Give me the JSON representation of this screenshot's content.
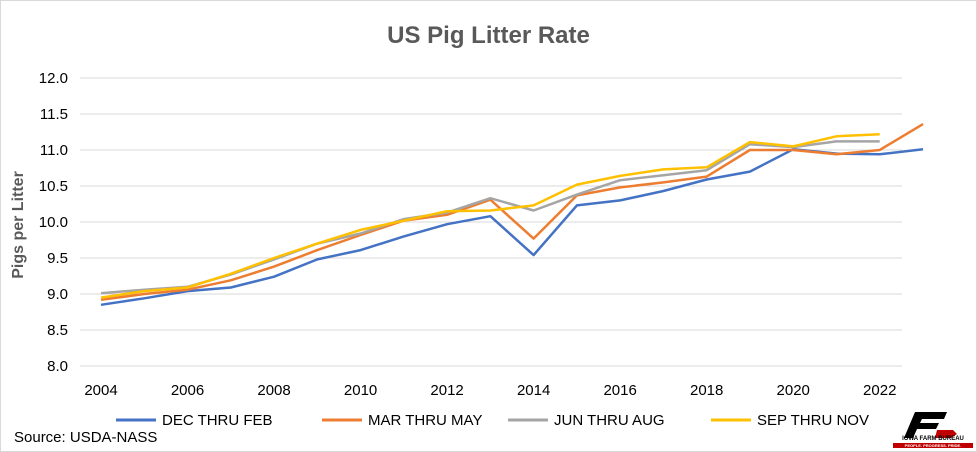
{
  "chart_data": {
    "type": "line",
    "title": "US Pig Litter Rate",
    "ylabel": "Pigs per Litter",
    "xlabel": "",
    "xlim": [
      2004,
      2023
    ],
    "ylim": [
      8.0,
      12.0
    ],
    "x_ticks": [
      "2004",
      "2006",
      "2008",
      "2010",
      "2012",
      "2014",
      "2016",
      "2018",
      "2020",
      "2022"
    ],
    "y_ticks": [
      "8.0",
      "8.5",
      "9.0",
      "9.5",
      "10.0",
      "10.5",
      "11.0",
      "11.5",
      "12.0"
    ],
    "grid": true,
    "legend": "bottom",
    "series": [
      {
        "name": "DEC THRU FEB",
        "color": "#4472c4",
        "x": [
          2004,
          2005,
          2006,
          2007,
          2008,
          2009,
          2010,
          2011,
          2012,
          2013,
          2014,
          2015,
          2016,
          2017,
          2018,
          2019,
          2020,
          2021,
          2022,
          2023
        ],
        "values": [
          8.85,
          8.94,
          9.04,
          9.09,
          9.24,
          9.48,
          9.61,
          9.8,
          9.97,
          10.08,
          9.54,
          10.23,
          10.3,
          10.43,
          10.59,
          10.7,
          11.01,
          10.95,
          10.94,
          11.01
        ]
      },
      {
        "name": "MAR THRU MAY",
        "color": "#ed7d31",
        "x": [
          2004,
          2005,
          2006,
          2007,
          2008,
          2009,
          2010,
          2011,
          2012,
          2013,
          2014,
          2015,
          2016,
          2017,
          2018,
          2019,
          2020,
          2021,
          2022,
          2023
        ],
        "values": [
          8.92,
          9.0,
          9.06,
          9.19,
          9.38,
          9.61,
          9.82,
          10.02,
          10.1,
          10.31,
          9.77,
          10.37,
          10.48,
          10.55,
          10.63,
          11.0,
          11.0,
          10.94,
          11.0,
          11.36
        ]
      },
      {
        "name": "JUN THRU AUG",
        "color": "#a5a5a5",
        "x": [
          2004,
          2005,
          2006,
          2007,
          2008,
          2009,
          2010,
          2011,
          2012,
          2013,
          2014,
          2015,
          2016,
          2017,
          2018,
          2019,
          2020,
          2021,
          2022
        ],
        "values": [
          9.01,
          9.06,
          9.1,
          9.27,
          9.48,
          9.7,
          9.84,
          10.04,
          10.13,
          10.33,
          10.16,
          10.38,
          10.58,
          10.65,
          10.72,
          11.08,
          11.04,
          11.12,
          11.12
        ]
      },
      {
        "name": "SEP THRU NOV",
        "color": "#ffc000",
        "x": [
          2004,
          2005,
          2006,
          2007,
          2008,
          2009,
          2010,
          2011,
          2012,
          2013,
          2014,
          2015,
          2016,
          2017,
          2018,
          2019,
          2020,
          2021,
          2022
        ],
        "values": [
          8.95,
          9.04,
          9.09,
          9.28,
          9.5,
          9.7,
          9.89,
          10.02,
          10.15,
          10.16,
          10.23,
          10.52,
          10.64,
          10.73,
          10.76,
          11.11,
          11.05,
          11.19,
          11.22
        ]
      }
    ]
  },
  "footer": {
    "source": "Source: USDA-NASS",
    "logo_text": "IOWA FARM BUREAU",
    "logo_tagline": "PEOPLE. PROGRESS. PRIDE."
  }
}
